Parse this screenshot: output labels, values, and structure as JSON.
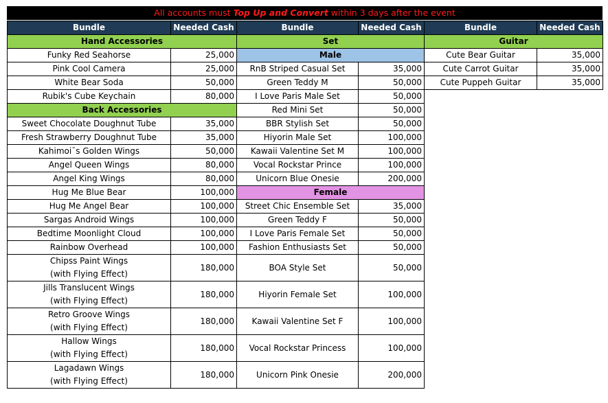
{
  "banner": {
    "prefix": "All accounts must ",
    "emph": "Top Up and Convert",
    "suffix": "  within 3 days after the event"
  },
  "headers": {
    "bundle": "Bundle",
    "cash": "Needed Cash",
    "set": "Set",
    "guitar": "Guitar"
  },
  "col1": {
    "hand_title": "Hand Accessories",
    "hand": [
      {
        "name": "Funky Red Seahorse",
        "cash": "25,000"
      },
      {
        "name": "Pink Cool Camera",
        "cash": "25,000"
      },
      {
        "name": "White Bear Soda",
        "cash": "50,000"
      },
      {
        "name": "Rubik's Cube Keychain",
        "cash": "80,000"
      }
    ],
    "back_title": "Back Accessories",
    "back": [
      {
        "name": "Sweet Chocolate Doughnut Tube",
        "cash": "35,000"
      },
      {
        "name": "Fresh Strawberry Doughnut Tube",
        "cash": "35,000"
      },
      {
        "name": "Kahimoi¯s Golden Wings",
        "cash": "50,000"
      },
      {
        "name": "Angel Queen Wings",
        "cash": "80,000"
      },
      {
        "name": "Angel King Wings",
        "cash": "80,000"
      },
      {
        "name": "Hug Me Blue Bear",
        "cash": "100,000"
      },
      {
        "name": "Hug Me Angel Bear",
        "cash": "100,000"
      },
      {
        "name": "Sargas Android Wings",
        "cash": "100,000"
      },
      {
        "name": "Bedtime Moonlight Cloud",
        "cash": "100,000"
      },
      {
        "name": "Rainbow Overhead",
        "cash": "100,000"
      }
    ],
    "effects": [
      {
        "name": "Chipss Paint Wings",
        "sub": "(with Flying Effect)",
        "cash": "180,000"
      },
      {
        "name": "Jills Translucent Wings",
        "sub": "(with Flying Effect)",
        "cash": "180,000"
      },
      {
        "name": "Retro Groove Wings",
        "sub": "(with Flying Effect)",
        "cash": "180,000"
      },
      {
        "name": "Hallow Wings",
        "sub": "(with Flying Effect)",
        "cash": "180,000"
      },
      {
        "name": "Lagadawn Wings",
        "sub": "(with Flying Effect)",
        "cash": "180,000"
      }
    ]
  },
  "col2": {
    "male_title": "Male",
    "male": [
      {
        "name": "RnB Striped Casual Set",
        "cash": "35,000"
      },
      {
        "name": "Green Teddy M",
        "cash": "50,000"
      },
      {
        "name": "I Love Paris Male Set",
        "cash": "50,000"
      },
      {
        "name": "Red Mini Set",
        "cash": "50,000"
      },
      {
        "name": "BBR Stylish Set",
        "cash": "50,000"
      },
      {
        "name": "Hiyorin Male Set",
        "cash": "100,000"
      },
      {
        "name": "Kawaii Valentine Set M",
        "cash": "100,000"
      },
      {
        "name": "Vocal Rockstar Prince",
        "cash": "100,000"
      },
      {
        "name": "Unicorn Blue Onesie",
        "cash": "200,000"
      }
    ],
    "female_title": "Female",
    "female": [
      {
        "name": "Street Chic Ensemble Set",
        "cash": "35,000"
      },
      {
        "name": "Green Teddy F",
        "cash": "50,000"
      },
      {
        "name": "I Love Paris Female Set",
        "cash": "50,000"
      },
      {
        "name": "Fashion Enthusiasts Set",
        "cash": "50,000"
      }
    ],
    "female_tall": [
      {
        "name": "BOA Style Set",
        "cash": "50,000"
      },
      {
        "name": "Hiyorin Female Set",
        "cash": "100,000"
      },
      {
        "name": "Kawaii Valentine Set F",
        "cash": "100,000"
      },
      {
        "name": "Vocal Rockstar Princess",
        "cash": "100,000"
      },
      {
        "name": "Unicorn Pink Onesie",
        "cash": "200,000"
      }
    ]
  },
  "col3": {
    "guitar": [
      {
        "name": "Cute Bear Guitar",
        "cash": "35,000"
      },
      {
        "name": "Cute Carrot Guitar",
        "cash": "35,000"
      },
      {
        "name": "Cute Puppeh Guitar",
        "cash": "35,000"
      }
    ]
  }
}
